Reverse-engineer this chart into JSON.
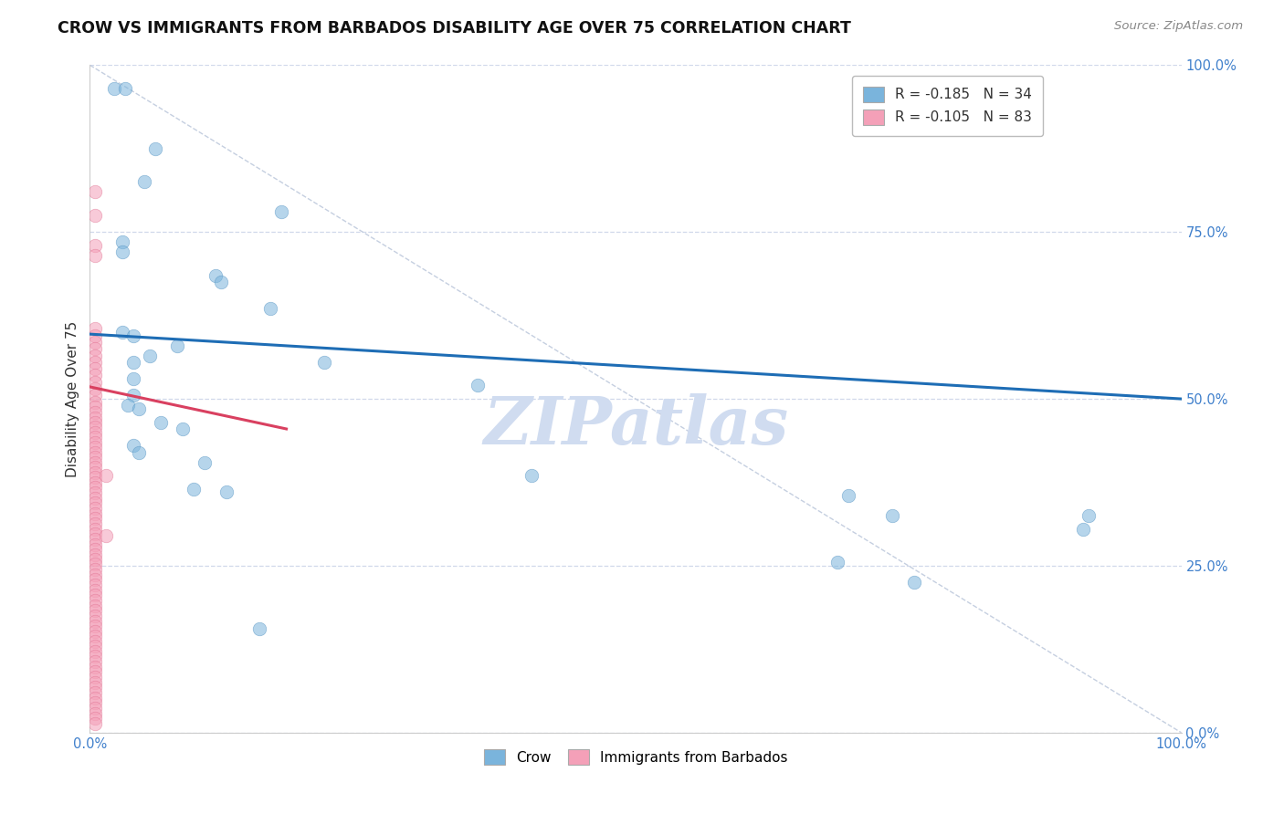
{
  "title": "CROW VS IMMIGRANTS FROM BARBADOS DISABILITY AGE OVER 75 CORRELATION CHART",
  "source": "Source: ZipAtlas.com",
  "ylabel": "Disability Age Over 75",
  "xlim": [
    0.0,
    1.0
  ],
  "ylim": [
    0.0,
    1.0
  ],
  "ytick_vals": [
    0.0,
    0.25,
    0.5,
    0.75,
    1.0
  ],
  "crow_R": -0.185,
  "crow_N": 34,
  "barbados_R": -0.105,
  "barbados_N": 83,
  "crow_scatter": [
    [
      0.022,
      0.965
    ],
    [
      0.032,
      0.965
    ],
    [
      0.06,
      0.875
    ],
    [
      0.05,
      0.825
    ],
    [
      0.175,
      0.78
    ],
    [
      0.03,
      0.735
    ],
    [
      0.115,
      0.685
    ],
    [
      0.03,
      0.72
    ],
    [
      0.165,
      0.635
    ],
    [
      0.03,
      0.6
    ],
    [
      0.04,
      0.595
    ],
    [
      0.08,
      0.58
    ],
    [
      0.215,
      0.555
    ],
    [
      0.12,
      0.675
    ],
    [
      0.04,
      0.53
    ],
    [
      0.055,
      0.565
    ],
    [
      0.04,
      0.555
    ],
    [
      0.355,
      0.52
    ],
    [
      0.04,
      0.505
    ],
    [
      0.035,
      0.49
    ],
    [
      0.045,
      0.485
    ],
    [
      0.065,
      0.465
    ],
    [
      0.085,
      0.455
    ],
    [
      0.04,
      0.43
    ],
    [
      0.045,
      0.42
    ],
    [
      0.105,
      0.405
    ],
    [
      0.405,
      0.385
    ],
    [
      0.095,
      0.365
    ],
    [
      0.125,
      0.36
    ],
    [
      0.695,
      0.355
    ],
    [
      0.735,
      0.325
    ],
    [
      0.915,
      0.325
    ],
    [
      0.91,
      0.305
    ],
    [
      0.685,
      0.255
    ],
    [
      0.755,
      0.225
    ],
    [
      0.155,
      0.155
    ]
  ],
  "barbados_scatter": [
    [
      0.005,
      0.81
    ],
    [
      0.005,
      0.775
    ],
    [
      0.005,
      0.73
    ],
    [
      0.005,
      0.715
    ],
    [
      0.005,
      0.605
    ],
    [
      0.005,
      0.595
    ],
    [
      0.005,
      0.585
    ],
    [
      0.005,
      0.575
    ],
    [
      0.005,
      0.565
    ],
    [
      0.005,
      0.555
    ],
    [
      0.005,
      0.545
    ],
    [
      0.005,
      0.535
    ],
    [
      0.005,
      0.525
    ],
    [
      0.005,
      0.515
    ],
    [
      0.005,
      0.505
    ],
    [
      0.005,
      0.495
    ],
    [
      0.005,
      0.488
    ],
    [
      0.005,
      0.48
    ],
    [
      0.005,
      0.472
    ],
    [
      0.005,
      0.465
    ],
    [
      0.005,
      0.458
    ],
    [
      0.005,
      0.45
    ],
    [
      0.005,
      0.443
    ],
    [
      0.005,
      0.435
    ],
    [
      0.005,
      0.428
    ],
    [
      0.005,
      0.42
    ],
    [
      0.005,
      0.413
    ],
    [
      0.005,
      0.405
    ],
    [
      0.005,
      0.397
    ],
    [
      0.005,
      0.39
    ],
    [
      0.005,
      0.382
    ],
    [
      0.005,
      0.374
    ],
    [
      0.005,
      0.367
    ],
    [
      0.005,
      0.359
    ],
    [
      0.005,
      0.351
    ],
    [
      0.005,
      0.344
    ],
    [
      0.005,
      0.336
    ],
    [
      0.005,
      0.328
    ],
    [
      0.005,
      0.321
    ],
    [
      0.005,
      0.313
    ],
    [
      0.005,
      0.305
    ],
    [
      0.005,
      0.298
    ],
    [
      0.005,
      0.29
    ],
    [
      0.005,
      0.282
    ],
    [
      0.005,
      0.275
    ],
    [
      0.005,
      0.267
    ],
    [
      0.005,
      0.259
    ],
    [
      0.005,
      0.252
    ],
    [
      0.005,
      0.244
    ],
    [
      0.005,
      0.236
    ],
    [
      0.005,
      0.229
    ],
    [
      0.005,
      0.221
    ],
    [
      0.005,
      0.213
    ],
    [
      0.005,
      0.206
    ],
    [
      0.015,
      0.385
    ],
    [
      0.015,
      0.295
    ],
    [
      0.005,
      0.198
    ],
    [
      0.005,
      0.19
    ],
    [
      0.005,
      0.183
    ],
    [
      0.005,
      0.175
    ],
    [
      0.005,
      0.167
    ],
    [
      0.005,
      0.16
    ],
    [
      0.005,
      0.152
    ],
    [
      0.005,
      0.144
    ],
    [
      0.005,
      0.137
    ],
    [
      0.005,
      0.129
    ],
    [
      0.005,
      0.121
    ],
    [
      0.005,
      0.114
    ],
    [
      0.005,
      0.106
    ],
    [
      0.005,
      0.098
    ],
    [
      0.005,
      0.091
    ],
    [
      0.005,
      0.083
    ],
    [
      0.005,
      0.075
    ],
    [
      0.005,
      0.068
    ],
    [
      0.005,
      0.06
    ],
    [
      0.005,
      0.052
    ],
    [
      0.005,
      0.045
    ],
    [
      0.005,
      0.037
    ],
    [
      0.005,
      0.029
    ],
    [
      0.005,
      0.022
    ],
    [
      0.005,
      0.014
    ]
  ],
  "crow_line": [
    [
      0.0,
      0.597
    ],
    [
      1.0,
      0.5
    ]
  ],
  "barbados_line": [
    [
      0.0,
      0.518
    ],
    [
      0.18,
      0.455
    ]
  ],
  "crow_line_color": "#1e6db5",
  "barbados_line_color": "#d94060",
  "diagonal_color": "#c5cfe0",
  "background_color": "#ffffff",
  "grid_color": "#d0d8ea",
  "watermark_text": "ZIPatlas",
  "watermark_color": "#d0dcf0",
  "title_fontsize": 12.5,
  "axis_label_fontsize": 11,
  "tick_fontsize": 10.5,
  "source_fontsize": 9.5,
  "legend_fontsize": 11,
  "scatter_size": 110,
  "scatter_alpha": 0.55,
  "crow_scatter_color": "#7ab4dc",
  "crow_scatter_edge": "#5090c0",
  "barbados_scatter_color": "#f4a0b8",
  "barbados_scatter_edge": "#e07090"
}
